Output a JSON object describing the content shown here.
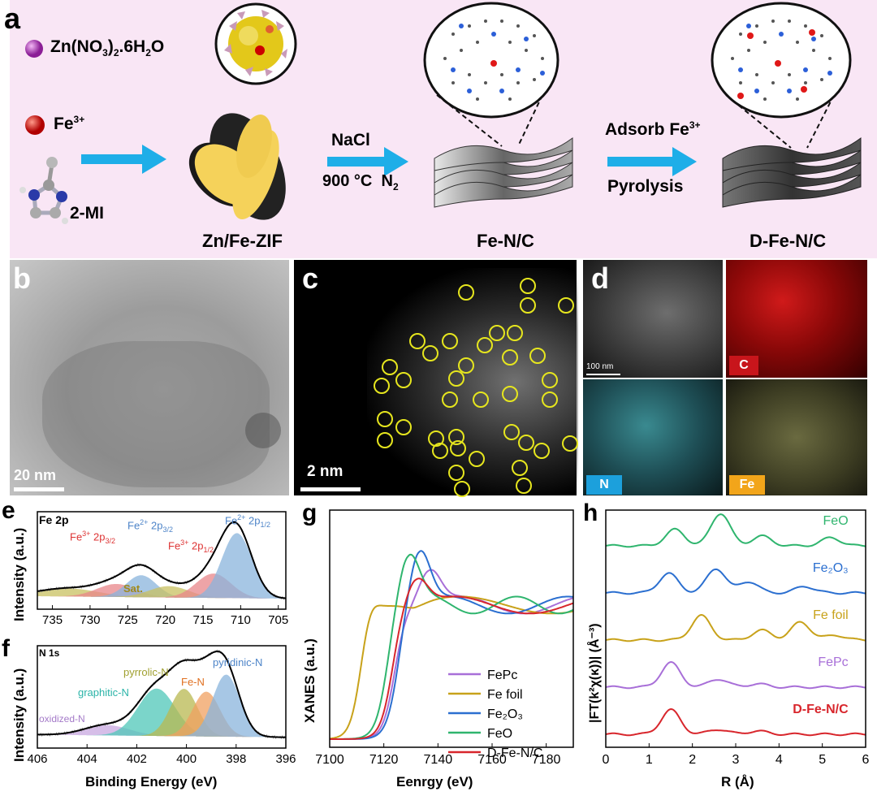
{
  "panel_a": {
    "label": "a",
    "zn_nitrate": {
      "base": "Zn(NO",
      "s1": "3",
      "mid": ")",
      "s2": "2",
      "end": ".6H",
      "s3": "2",
      "tail": "O"
    },
    "fe3": {
      "base": "Fe",
      "sup": "3+"
    },
    "mi": "2-MI",
    "zif_label": "Zn/Fe-ZIF",
    "step1_top": "NaCl",
    "step1_bottom_a": "900 °C",
    "step1_bottom_b": "N",
    "step1_bottom_b_sub": "2",
    "fenc_label": "Fe-N/C",
    "step2_top": "Adsorb Fe",
    "step2_top_sup": "3+",
    "step2_bottom": "Pyrolysis",
    "dfenc_label": "D-Fe-N/C"
  },
  "panel_b": {
    "label": "b",
    "scale": "20 nm"
  },
  "panel_c": {
    "label": "c",
    "scale": "2 nm"
  },
  "panel_d": {
    "label": "d",
    "scale": "100 nm",
    "maps": [
      "C",
      "N",
      "Fe"
    ],
    "map_colors": [
      "#c8151b",
      "#1ca0dc",
      "#f2a51a"
    ]
  },
  "panel_e": {
    "label": "e",
    "title": "Fe 2p",
    "ylabel": "Intensity (a.u.)",
    "fe3_32": "Fe",
    "fe3_32_sup": "3+",
    "fe3_32_txt": " 2p",
    "fe3_32_sub": "3/2",
    "fe2_32": "Fe",
    "fe2_32_sup": "2+",
    "fe2_32_txt": " 2p",
    "fe2_32_sub": "3/2",
    "fe3_12": "Fe",
    "fe3_12_sup": "3+",
    "fe3_12_txt": " 2p",
    "fe3_12_sub": "1/2",
    "fe2_12": "Fe",
    "fe2_12_sup": "2+",
    "fe2_12_txt": " 2p",
    "fe2_12_sub": "1/2",
    "sat": "Sat."
  },
  "panel_f": {
    "label": "f",
    "title": "N 1s",
    "ylabel": "Intensity (a.u.)",
    "xlabel": "Binding Energy (eV)",
    "peaks": [
      "oxidized-N",
      "graphitic-N",
      "pyrrolic-N",
      "Fe-N",
      "pyridinic-N"
    ]
  },
  "panel_g": {
    "label": "g",
    "ylabel": "XANES (a.u.)",
    "xlabel": "Eenrgy (eV)"
  },
  "panel_h": {
    "label": "h",
    "ylabel": "|FT(k²χ(κ))| (Å⁻³)",
    "xlabel": "R (Å)"
  },
  "chart_data": [
    {
      "type": "line",
      "id": "e",
      "xlabel": "",
      "ylabel": "Intensity (a.u.)",
      "x_ticks": [
        735,
        730,
        725,
        720,
        715,
        710,
        705
      ],
      "xlim": [
        737,
        704
      ],
      "components": [
        {
          "name": "Sat.",
          "center": 733.0,
          "height": 0.1,
          "width": 4.0,
          "color": "#c8c060"
        },
        {
          "name": "Fe3+ 2p3/2",
          "center": 726.5,
          "height": 0.16,
          "width": 2.6,
          "color": "#e8868a"
        },
        {
          "name": "Fe2+ 2p3/2",
          "center": 723.2,
          "height": 0.27,
          "width": 2.0,
          "color": "#8ab4dc"
        },
        {
          "name": "Sat.",
          "center": 719.5,
          "height": 0.14,
          "width": 2.6,
          "color": "#c8c060"
        },
        {
          "name": "Fe3+ 2p1/2",
          "center": 713.6,
          "height": 0.3,
          "width": 2.3,
          "color": "#e8868a"
        },
        {
          "name": "Fe2+ 2p1/2",
          "center": 710.5,
          "height": 0.8,
          "width": 2.0,
          "color": "#8ab4dc"
        }
      ]
    },
    {
      "type": "line",
      "id": "f",
      "xlabel": "Binding Energy (eV)",
      "ylabel": "Intensity (a.u.)",
      "x_ticks": [
        406,
        404,
        402,
        400,
        398,
        396
      ],
      "xlim": [
        406,
        396
      ],
      "components": [
        {
          "name": "oxidized-N",
          "center": 403.2,
          "height": 0.12,
          "width": 0.9,
          "color": "#c8a8e0"
        },
        {
          "name": "graphitic-N",
          "center": 401.2,
          "height": 0.55,
          "width": 0.75,
          "color": "#4fc7b8"
        },
        {
          "name": "pyrrolic-N",
          "center": 400.1,
          "height": 0.55,
          "width": 0.55,
          "color": "#b8b850"
        },
        {
          "name": "Fe-N",
          "center": 399.2,
          "height": 0.52,
          "width": 0.55,
          "color": "#f0a060"
        },
        {
          "name": "pyridinic-N",
          "center": 398.4,
          "height": 0.72,
          "width": 0.55,
          "color": "#8ab4dc"
        }
      ]
    },
    {
      "type": "line",
      "id": "g",
      "xlabel": "Eenrgy (eV)",
      "ylabel": "XANES (a.u.)",
      "x_ticks": [
        7100,
        7120,
        7140,
        7160,
        7180
      ],
      "xlim": [
        7100,
        7190
      ],
      "series": [
        {
          "name": "FePc",
          "color": "#a86fd8",
          "edge": 7124,
          "peak": 7137,
          "peak_y": 1.2,
          "osc_y": 0.95,
          "osc_x": 7160
        },
        {
          "name": "Fe foil",
          "color": "#c8a21a",
          "edge": 7112,
          "peak": 7131,
          "peak_y": 0.93,
          "osc_y": 0.93,
          "osc_x": 7165
        },
        {
          "name": "Fe₂O₃",
          "color": "#2b6fd0",
          "edge": 7125,
          "peak": 7133,
          "peak_y": 1.36,
          "osc_y": 0.9,
          "osc_x": 7155
        },
        {
          "name": "FeO",
          "color": "#2fb56e",
          "edge": 7121,
          "peak": 7129,
          "peak_y": 1.33,
          "osc_y": 0.9,
          "osc_x": 7145
        },
        {
          "name": "D-Fe-N/C",
          "color": "#d8262c",
          "edge": 7123,
          "peak": 7132,
          "peak_y": 1.15,
          "osc_y": 0.96,
          "osc_x": 7160
        }
      ]
    },
    {
      "type": "line",
      "id": "h",
      "xlabel": "R (Å)",
      "ylabel": "|FT(k²χ(κ))| (Å⁻³)",
      "x_ticks": [
        0,
        1,
        2,
        3,
        4,
        5,
        6
      ],
      "xlim": [
        0,
        6
      ],
      "series": [
        {
          "name": "FeO",
          "color": "#2fb56e",
          "offset": 4,
          "peaks": [
            [
              1.6,
              0.5
            ],
            [
              2.65,
              1.0
            ],
            [
              3.6,
              0.3
            ],
            [
              5.2,
              0.25
            ]
          ]
        },
        {
          "name": "Fe₂O₃",
          "color": "#2b6fd0",
          "offset": 3,
          "peaks": [
            [
              1.45,
              0.6
            ],
            [
              2.55,
              0.75
            ],
            [
              3.3,
              0.35
            ],
            [
              4.6,
              0.2
            ]
          ]
        },
        {
          "name": "Fe foil",
          "color": "#c8a21a",
          "offset": 2,
          "peaks": [
            [
              2.2,
              0.75
            ],
            [
              3.6,
              0.3
            ],
            [
              4.5,
              0.55
            ],
            [
              5.3,
              0.15
            ]
          ]
        },
        {
          "name": "FePc",
          "color": "#a86fd8",
          "offset": 1,
          "peaks": [
            [
              1.5,
              0.75
            ],
            [
              2.6,
              0.25
            ],
            [
              3.5,
              0.1
            ]
          ]
        },
        {
          "name": "D-Fe-N/C",
          "color": "#d8262c",
          "offset": 0,
          "peaks": [
            [
              1.5,
              0.75
            ],
            [
              2.6,
              0.15
            ],
            [
              3.5,
              0.1
            ]
          ]
        }
      ]
    }
  ]
}
